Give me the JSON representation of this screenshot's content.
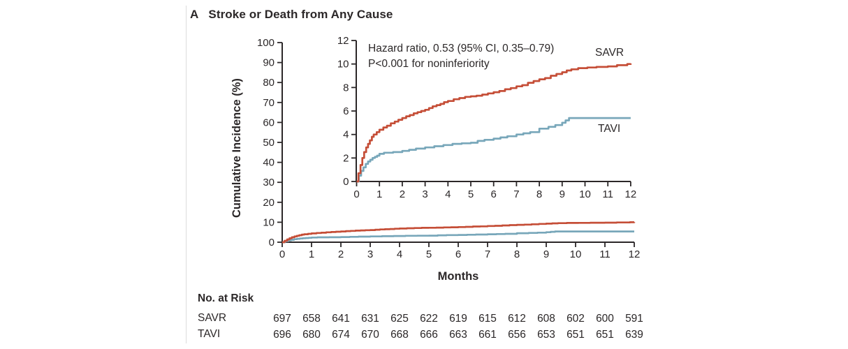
{
  "figure": {
    "panel_letter": "A",
    "title": "Stroke or Death from Any Cause",
    "ylabel": "Cumulative Incidence (%)",
    "xlabel": "Months",
    "annotation_line1": "Hazard ratio, 0.53 (95% CI, 0.35–0.79)",
    "annotation_line2": "P<0.001 for noninferiority",
    "colors": {
      "savr": "#c54e37",
      "tavi": "#78a7ba",
      "axis": "#2b2728",
      "divider": "#dcdcdc"
    }
  },
  "chart_data": {
    "type": "line",
    "subtype": "kaplan-meier-step",
    "title": "Stroke or Death from Any Cause",
    "xlabel": "Months",
    "ylabel": "Cumulative Incidence (%)",
    "annotation": [
      "Hazard ratio, 0.53 (95% CI, 0.35–0.79)",
      "P<0.001 for noninferiority"
    ],
    "main_axis": {
      "xlim": [
        0,
        12
      ],
      "ylim": [
        0,
        100
      ],
      "xticks": [
        0,
        1,
        2,
        3,
        4,
        5,
        6,
        7,
        8,
        9,
        10,
        11,
        12
      ],
      "yticks": [
        0,
        10,
        20,
        30,
        40,
        50,
        60,
        70,
        80,
        90,
        100
      ],
      "grid": false
    },
    "inset_axis": {
      "xlim": [
        0,
        12
      ],
      "ylim": [
        0,
        12
      ],
      "xticks": [
        0,
        1,
        2,
        3,
        4,
        5,
        6,
        7,
        8,
        9,
        10,
        11,
        12
      ],
      "yticks": [
        0,
        2,
        4,
        6,
        8,
        10,
        12
      ],
      "grid": false
    },
    "legend_position": "curve-end-labels",
    "series": [
      {
        "name": "SAVR",
        "color": "#c54e37",
        "step": [
          [
            0,
            0
          ],
          [
            0.08,
            0.7
          ],
          [
            0.17,
            1.4
          ],
          [
            0.25,
            2.0
          ],
          [
            0.33,
            2.5
          ],
          [
            0.42,
            2.9
          ],
          [
            0.5,
            3.2
          ],
          [
            0.58,
            3.5
          ],
          [
            0.67,
            3.8
          ],
          [
            0.75,
            4.0
          ],
          [
            0.88,
            4.2
          ],
          [
            1.0,
            4.4
          ],
          [
            1.17,
            4.6
          ],
          [
            1.33,
            4.75
          ],
          [
            1.5,
            4.95
          ],
          [
            1.67,
            5.1
          ],
          [
            1.83,
            5.25
          ],
          [
            2.0,
            5.4
          ],
          [
            2.17,
            5.55
          ],
          [
            2.33,
            5.65
          ],
          [
            2.5,
            5.8
          ],
          [
            2.67,
            5.9
          ],
          [
            2.83,
            6.0
          ],
          [
            3.0,
            6.1
          ],
          [
            3.17,
            6.25
          ],
          [
            3.33,
            6.4
          ],
          [
            3.5,
            6.5
          ],
          [
            3.67,
            6.6
          ],
          [
            3.83,
            6.75
          ],
          [
            4.0,
            6.85
          ],
          [
            4.25,
            7.0
          ],
          [
            4.5,
            7.1
          ],
          [
            4.75,
            7.2
          ],
          [
            5.0,
            7.25
          ],
          [
            5.25,
            7.3
          ],
          [
            5.5,
            7.4
          ],
          [
            5.75,
            7.5
          ],
          [
            6.0,
            7.6
          ],
          [
            6.25,
            7.7
          ],
          [
            6.5,
            7.85
          ],
          [
            6.75,
            7.95
          ],
          [
            7.0,
            8.1
          ],
          [
            7.25,
            8.2
          ],
          [
            7.5,
            8.4
          ],
          [
            7.75,
            8.55
          ],
          [
            8.0,
            8.7
          ],
          [
            8.25,
            8.8
          ],
          [
            8.5,
            9.0
          ],
          [
            8.75,
            9.15
          ],
          [
            9.0,
            9.3
          ],
          [
            9.2,
            9.45
          ],
          [
            9.4,
            9.55
          ],
          [
            9.7,
            9.65
          ],
          [
            10.1,
            9.7
          ],
          [
            10.5,
            9.75
          ],
          [
            11.0,
            9.8
          ],
          [
            11.4,
            9.9
          ],
          [
            11.85,
            10.0
          ],
          [
            12,
            10.05
          ]
        ]
      },
      {
        "name": "TAVI",
        "color": "#78a7ba",
        "step": [
          [
            0,
            0
          ],
          [
            0.1,
            0.5
          ],
          [
            0.2,
            0.9
          ],
          [
            0.3,
            1.2
          ],
          [
            0.4,
            1.5
          ],
          [
            0.5,
            1.7
          ],
          [
            0.6,
            1.85
          ],
          [
            0.7,
            2.0
          ],
          [
            0.8,
            2.1
          ],
          [
            0.9,
            2.2
          ],
          [
            1.0,
            2.35
          ],
          [
            1.2,
            2.45
          ],
          [
            1.6,
            2.5
          ],
          [
            2.0,
            2.6
          ],
          [
            2.3,
            2.7
          ],
          [
            2.6,
            2.8
          ],
          [
            3.0,
            2.9
          ],
          [
            3.4,
            3.0
          ],
          [
            3.8,
            3.1
          ],
          [
            4.2,
            3.2
          ],
          [
            4.6,
            3.25
          ],
          [
            5.0,
            3.3
          ],
          [
            5.3,
            3.45
          ],
          [
            5.6,
            3.55
          ],
          [
            6.0,
            3.65
          ],
          [
            6.3,
            3.75
          ],
          [
            6.6,
            3.85
          ],
          [
            7.0,
            4.0
          ],
          [
            7.3,
            4.1
          ],
          [
            7.6,
            4.2
          ],
          [
            8.0,
            4.5
          ],
          [
            8.4,
            4.65
          ],
          [
            8.7,
            4.8
          ],
          [
            9.0,
            5.0
          ],
          [
            9.15,
            5.2
          ],
          [
            9.3,
            5.4
          ],
          [
            12,
            5.4
          ]
        ]
      }
    ]
  },
  "risk_table": {
    "header": "No. at Risk",
    "months": [
      0,
      1,
      2,
      3,
      4,
      5,
      6,
      7,
      8,
      9,
      10,
      11,
      12
    ],
    "rows": [
      {
        "label": "SAVR",
        "counts": [
          697,
          658,
          641,
          631,
          625,
          622,
          619,
          615,
          612,
          608,
          602,
          600,
          591
        ]
      },
      {
        "label": "TAVI",
        "counts": [
          696,
          680,
          674,
          670,
          668,
          666,
          663,
          661,
          656,
          653,
          651,
          651,
          639
        ]
      }
    ]
  }
}
